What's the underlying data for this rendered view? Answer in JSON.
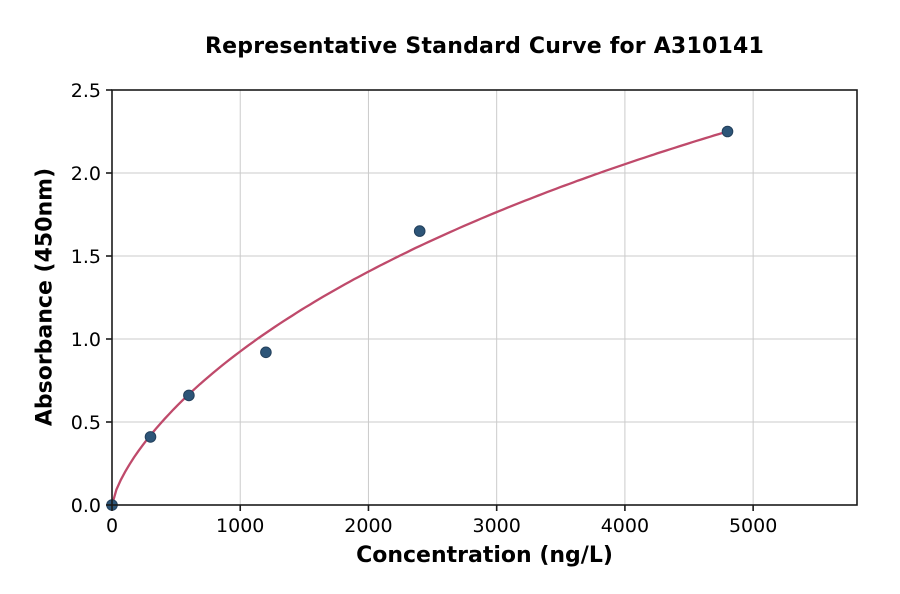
{
  "chart_data": {
    "type": "scatter",
    "title": "Representative Standard Curve for A310141",
    "xlabel": "Concentration (ng/L)",
    "ylabel": "Absorbance (450nm)",
    "xlim": [
      0,
      5810
    ],
    "ylim": [
      0,
      2.5
    ],
    "x_ticks": [
      0,
      1000,
      2000,
      3000,
      4000,
      5000
    ],
    "x_tick_labels": [
      "0",
      "1000",
      "2000",
      "3000",
      "4000",
      "5000"
    ],
    "y_ticks": [
      0,
      0.5,
      1.0,
      1.5,
      2.0,
      2.5
    ],
    "y_tick_labels": [
      "0.0",
      "0.5",
      "1.0",
      "1.5",
      "2.0",
      "2.5"
    ],
    "grid": true,
    "legend": null,
    "series": [
      {
        "name": "standard-points",
        "kind": "scatter",
        "x": [
          0,
          300,
          600,
          1200,
          2400,
          4800
        ],
        "y": [
          0.0,
          0.41,
          0.66,
          0.92,
          1.65,
          2.25
        ]
      },
      {
        "name": "fit-curve",
        "kind": "line",
        "fit": {
          "model": "4pl",
          "a": 0,
          "d": 7.1,
          "c": 13936,
          "b": 0.7205
        },
        "x_range": [
          0,
          4800
        ]
      }
    ],
    "colors": {
      "marker": "#2d5578",
      "marker_edge": "#23405c",
      "curve": "#bf4a6b",
      "grid": "#cbcbcb",
      "spine": "#1a1a1a",
      "text": "#000000",
      "background": "#ffffff"
    }
  }
}
